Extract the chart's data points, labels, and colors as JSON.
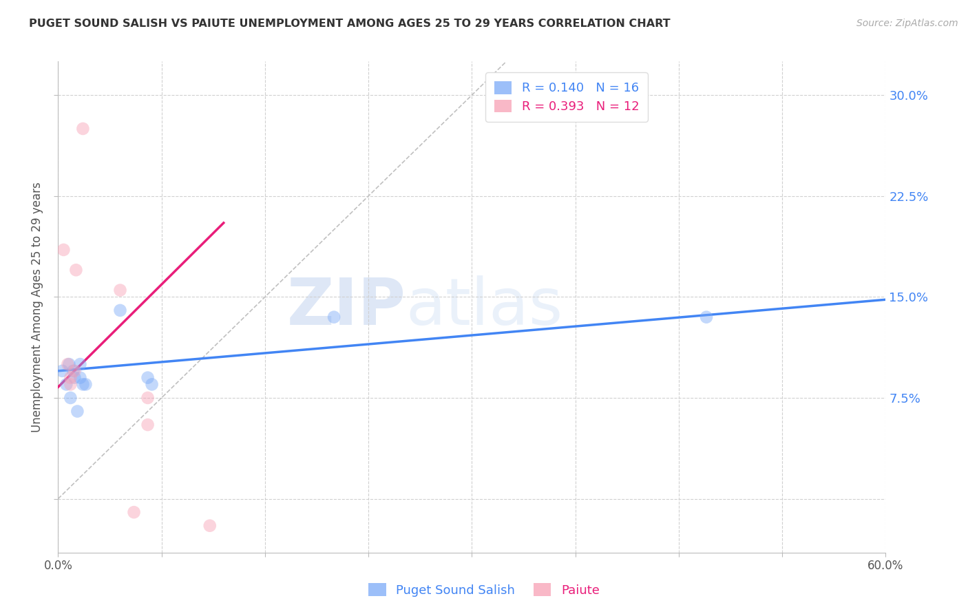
{
  "title": "PUGET SOUND SALISH VS PAIUTE UNEMPLOYMENT AMONG AGES 25 TO 29 YEARS CORRELATION CHART",
  "source": "Source: ZipAtlas.com",
  "ylabel": "Unemployment Among Ages 25 to 29 years",
  "xlim": [
    0.0,
    0.6
  ],
  "ylim": [
    -0.04,
    0.325
  ],
  "xticks": [
    0.0,
    0.075,
    0.15,
    0.225,
    0.3,
    0.375,
    0.45,
    0.525,
    0.6
  ],
  "xticklabels": [
    "0.0%",
    "",
    "",
    "",
    "",
    "",
    "",
    "",
    "60.0%"
  ],
  "yticks": [
    0.0,
    0.075,
    0.15,
    0.225,
    0.3
  ],
  "yticklabels": [
    "",
    "7.5%",
    "15.0%",
    "22.5%",
    "30.0%"
  ],
  "blue_color": "#7baaf7",
  "pink_color": "#f7a1b5",
  "blue_line_color": "#4285f4",
  "pink_line_color": "#e91e7a",
  "blue_R": "0.140",
  "blue_N": "16",
  "pink_R": "0.393",
  "pink_N": "12",
  "legend_label_blue": "Puget Sound Salish",
  "legend_label_pink": "Paiute",
  "watermark_zip": "ZIP",
  "watermark_atlas": "atlas",
  "blue_scatter_x": [
    0.003,
    0.006,
    0.008,
    0.009,
    0.011,
    0.012,
    0.014,
    0.016,
    0.016,
    0.018,
    0.02,
    0.045,
    0.065,
    0.068,
    0.2,
    0.47
  ],
  "blue_scatter_y": [
    0.095,
    0.085,
    0.1,
    0.075,
    0.095,
    0.09,
    0.065,
    0.1,
    0.09,
    0.085,
    0.085,
    0.14,
    0.09,
    0.085,
    0.135,
    0.135
  ],
  "pink_scatter_x": [
    0.004,
    0.007,
    0.009,
    0.009,
    0.012,
    0.013,
    0.018,
    0.045,
    0.055,
    0.065,
    0.065,
    0.11
  ],
  "pink_scatter_y": [
    0.185,
    0.1,
    0.09,
    0.085,
    0.095,
    0.17,
    0.275,
    0.155,
    -0.01,
    0.075,
    0.055,
    -0.02
  ],
  "blue_trend_x": [
    0.0,
    0.6
  ],
  "blue_trend_y": [
    0.095,
    0.148
  ],
  "pink_trend_x": [
    0.0,
    0.12
  ],
  "pink_trend_y": [
    0.083,
    0.205
  ],
  "diag_line_x": [
    0.0,
    0.325
  ],
  "diag_line_y": [
    0.0,
    0.325
  ],
  "marker_size": 180,
  "alpha": 0.45,
  "grid_color": "#d0d0d0",
  "bg_color": "#ffffff"
}
